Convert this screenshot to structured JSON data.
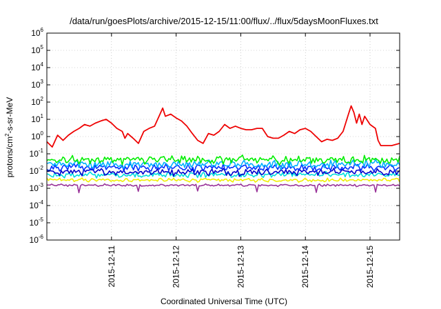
{
  "chart_data": {
    "type": "line",
    "title": "/data/run/goesPlots/archive/2015-12-15/11:00/flux/../flux/5daysMoonFluxes.txt",
    "xlabel": "Coordinated Universal Time (UTC)",
    "ylabel": "protons/cm²-s-sr-MeV",
    "ylabel_parts": {
      "pre": "protons/cm",
      "sup": "2",
      "post": "-s-sr-MeV"
    },
    "yscale": "log",
    "ylim": [
      1e-06,
      1000000.0
    ],
    "xlim": [
      "2015-12-10 00:00",
      "2015-12-15 11:00"
    ],
    "grid": true,
    "y_ticks": [
      {
        "base": "10",
        "exp": "-6",
        "value": 1e-06
      },
      {
        "base": "10",
        "exp": "-5",
        "value": 1e-05
      },
      {
        "base": "10",
        "exp": "-4",
        "value": 0.0001
      },
      {
        "base": "10",
        "exp": "-3",
        "value": 0.001
      },
      {
        "base": "10",
        "exp": "-2",
        "value": 0.01
      },
      {
        "base": "10",
        "exp": "-1",
        "value": 0.1
      },
      {
        "base": "10",
        "exp": "0",
        "value": 1
      },
      {
        "base": "10",
        "exp": "1",
        "value": 10
      },
      {
        "base": "10",
        "exp": "2",
        "value": 100
      },
      {
        "base": "10",
        "exp": "3",
        "value": 1000
      },
      {
        "base": "10",
        "exp": "4",
        "value": 10000
      },
      {
        "base": "10",
        "exp": "5",
        "value": 100000
      },
      {
        "base": "10",
        "exp": "6",
        "value": 1000000
      }
    ],
    "x_ticks": [
      {
        "label": "2015-12-11",
        "time": "2015-12-11 00:00"
      },
      {
        "label": "2015-12-12",
        "time": "2015-12-12 00:00"
      },
      {
        "label": "2015-12-13",
        "time": "2015-12-13 00:00"
      },
      {
        "label": "2015-12-14",
        "time": "2015-12-14 00:00"
      },
      {
        "label": "2015-12-15",
        "time": "2015-12-15 00:00"
      }
    ],
    "series": [
      {
        "color": "#ee0000",
        "points": [
          [
            "2015-12-10 00:00",
            0.5
          ],
          [
            "2015-12-10 02:00",
            0.25
          ],
          [
            "2015-12-10 04:00",
            1.2
          ],
          [
            "2015-12-10 06:00",
            0.6
          ],
          [
            "2015-12-10 08:00",
            1.2
          ],
          [
            "2015-12-10 10:00",
            2.0
          ],
          [
            "2015-12-10 12:00",
            3.0
          ],
          [
            "2015-12-10 14:00",
            5.0
          ],
          [
            "2015-12-10 16:00",
            4.0
          ],
          [
            "2015-12-10 18:00",
            6.0
          ],
          [
            "2015-12-10 20:00",
            8.0
          ],
          [
            "2015-12-10 22:00",
            10.0
          ],
          [
            "2015-12-11 00:00",
            6.0
          ],
          [
            "2015-12-11 02:00",
            3.0
          ],
          [
            "2015-12-11 04:00",
            2.0
          ],
          [
            "2015-12-11 05:00",
            0.8
          ],
          [
            "2015-12-11 06:00",
            1.5
          ],
          [
            "2015-12-11 08:00",
            0.8
          ],
          [
            "2015-12-11 10:00",
            0.4
          ],
          [
            "2015-12-11 12:00",
            2.0
          ],
          [
            "2015-12-11 14:00",
            3.0
          ],
          [
            "2015-12-11 16:00",
            4.0
          ],
          [
            "2015-12-11 18:00",
            20.0
          ],
          [
            "2015-12-11 19:00",
            45.0
          ],
          [
            "2015-12-11 20:00",
            15.0
          ],
          [
            "2015-12-11 22:00",
            20.0
          ],
          [
            "2015-12-12 00:00",
            12.0
          ],
          [
            "2015-12-12 02:00",
            8.0
          ],
          [
            "2015-12-12 04:00",
            4.0
          ],
          [
            "2015-12-12 06:00",
            1.5
          ],
          [
            "2015-12-12 08:00",
            0.6
          ],
          [
            "2015-12-12 10:00",
            0.4
          ],
          [
            "2015-12-12 12:00",
            1.5
          ],
          [
            "2015-12-12 14:00",
            1.2
          ],
          [
            "2015-12-12 16:00",
            2.0
          ],
          [
            "2015-12-12 18:00",
            5.0
          ],
          [
            "2015-12-12 20:00",
            3.0
          ],
          [
            "2015-12-12 22:00",
            4.0
          ],
          [
            "2015-12-13 00:00",
            3.0
          ],
          [
            "2015-12-13 02:00",
            2.5
          ],
          [
            "2015-12-13 04:00",
            2.5
          ],
          [
            "2015-12-13 06:00",
            3.0
          ],
          [
            "2015-12-13 08:00",
            3.0
          ],
          [
            "2015-12-13 10:00",
            1.0
          ],
          [
            "2015-12-13 12:00",
            0.8
          ],
          [
            "2015-12-13 14:00",
            0.8
          ],
          [
            "2015-12-13 16:00",
            1.2
          ],
          [
            "2015-12-13 18:00",
            2.0
          ],
          [
            "2015-12-13 20:00",
            1.5
          ],
          [
            "2015-12-13 22:00",
            2.5
          ],
          [
            "2015-12-14 00:00",
            3.0
          ],
          [
            "2015-12-14 02:00",
            2.0
          ],
          [
            "2015-12-14 04:00",
            1.0
          ],
          [
            "2015-12-14 06:00",
            0.5
          ],
          [
            "2015-12-14 08:00",
            0.7
          ],
          [
            "2015-12-14 10:00",
            0.6
          ],
          [
            "2015-12-14 12:00",
            0.8
          ],
          [
            "2015-12-14 14:00",
            2.0
          ],
          [
            "2015-12-14 16:00",
            20.0
          ],
          [
            "2015-12-14 17:00",
            60.0
          ],
          [
            "2015-12-14 18:00",
            25.0
          ],
          [
            "2015-12-14 19:00",
            6.0
          ],
          [
            "2015-12-14 20:00",
            20.0
          ],
          [
            "2015-12-14 21:00",
            5.0
          ],
          [
            "2015-12-14 22:00",
            15.0
          ],
          [
            "2015-12-15 00:00",
            5.0
          ],
          [
            "2015-12-15 02:00",
            3.0
          ],
          [
            "2015-12-15 03:00",
            0.6
          ],
          [
            "2015-12-15 04:00",
            0.3
          ],
          [
            "2015-12-15 06:00",
            0.3
          ],
          [
            "2015-12-15 08:00",
            0.3
          ],
          [
            "2015-12-15 11:00",
            0.4
          ]
        ]
      },
      {
        "color": "#00ee00",
        "base": 0.045,
        "amp": 0.35
      },
      {
        "color": "#00b0ff",
        "base": 0.025,
        "amp": 0.35
      },
      {
        "color": "#0030ff",
        "base": 0.016,
        "amp": 0.3
      },
      {
        "color": "#0000cc",
        "base": 0.009,
        "amp": 0.3
      },
      {
        "color": "#00dddd",
        "base": 0.006,
        "amp": 0.25
      },
      {
        "color": "#eeee00",
        "base": 0.003,
        "amp": 0.15
      },
      {
        "color": "#993399",
        "base": 0.0015,
        "amp": 0.1
      }
    ]
  }
}
